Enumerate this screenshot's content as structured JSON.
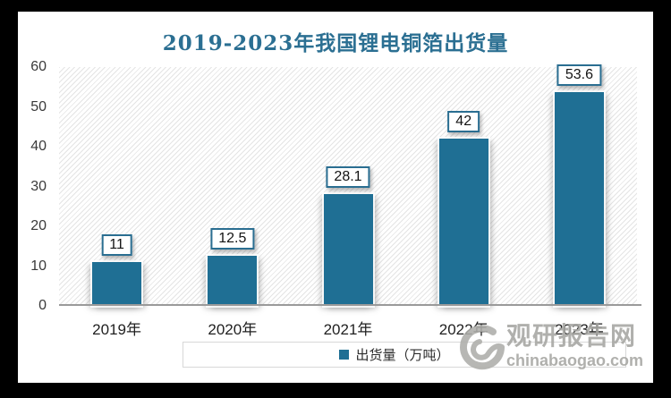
{
  "chart_data": {
    "type": "bar",
    "title": "2019-2023年我国锂电铜箔出货量",
    "categories": [
      "2019年",
      "2020年",
      "2021年",
      "2022年",
      "2023年"
    ],
    "values": [
      11,
      12.5,
      28.1,
      42,
      53.6
    ],
    "value_labels": [
      "11",
      "12.5",
      "28.1",
      "42",
      "53.6"
    ],
    "ylim": [
      0,
      60
    ],
    "yticks": [
      "0",
      "10",
      "20",
      "30",
      "40",
      "50",
      "60"
    ],
    "xlabel": "",
    "ylabel": "",
    "grid": false,
    "plot_background": "light-diagonal-hatch",
    "legend": {
      "label": "出货量（万吨）",
      "position": "bottom-center"
    },
    "bar_color": "#1F6F94"
  },
  "watermark": {
    "site_name": "观研报告网",
    "site_domain": "chinabaogao.com"
  },
  "colors": {
    "frame": "#000000",
    "page": "#ffffff",
    "title": "#2B6F92",
    "bar": "#1F6F94",
    "label_box_border": "#2A6E91",
    "axis_line": "#9a9a9a",
    "hatch_line": "#e4e4e4",
    "legend_border": "#d8d8d8",
    "watermark_gray": "#a6a6a2"
  }
}
